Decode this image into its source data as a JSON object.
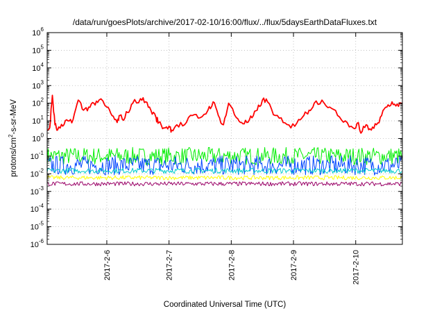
{
  "chart_data": {
    "type": "line",
    "title": "/data/run/goesPlots/archive/2017-02-10/16:00/flux/../flux/5daysEarthDataFluxes.txt",
    "xlabel": "Coordinated Universal Time (UTC)",
    "ylabel": {
      "prefix": "protons/cm",
      "sup": "2",
      "suffix": "-s-sr-MeV"
    },
    "yscale": "log",
    "ylim": [
      1e-06,
      1000000.0
    ],
    "xlim": [
      "2017-02-05T01:00",
      "2017-02-10T18:00"
    ],
    "grid": true,
    "legend": "none",
    "y_ticks": [
      {
        "base": "10",
        "exp": "-6",
        "value": 1e-06
      },
      {
        "base": "10",
        "exp": "-5",
        "value": 1e-05
      },
      {
        "base": "10",
        "exp": "-4",
        "value": 0.0001
      },
      {
        "base": "10",
        "exp": "-3",
        "value": 0.001
      },
      {
        "base": "10",
        "exp": "-2",
        "value": 0.01
      },
      {
        "base": "10",
        "exp": "-1",
        "value": 0.1
      },
      {
        "base": "10",
        "exp": "0",
        "value": 1
      },
      {
        "base": "10",
        "exp": "1",
        "value": 10
      },
      {
        "base": "10",
        "exp": "2",
        "value": 100
      },
      {
        "base": "10",
        "exp": "3",
        "value": 1000
      },
      {
        "base": "10",
        "exp": "4",
        "value": 10000
      },
      {
        "base": "10",
        "exp": "5",
        "value": 100000
      },
      {
        "base": "10",
        "exp": "6",
        "value": 1000000
      }
    ],
    "x_ticks": [
      {
        "label": "2017-2-6",
        "value": "2017-02-06T00:00"
      },
      {
        "label": "2017-2-7",
        "value": "2017-02-07T00:00"
      },
      {
        "label": "2017-2-8",
        "value": "2017-02-08T00:00"
      },
      {
        "label": "2017-2-9",
        "value": "2017-02-09T00:00"
      },
      {
        "label": "2017-2-10",
        "value": "2017-02-10T00:00"
      }
    ],
    "series": [
      {
        "color": "#ff0000",
        "x": [
          "2017-02-05T01:00",
          "2017-02-05T02:00",
          "2017-02-05T03:00",
          "2017-02-05T04:00",
          "2017-02-05T05:00",
          "2017-02-05T07:00",
          "2017-02-05T09:00",
          "2017-02-05T11:00",
          "2017-02-05T13:00",
          "2017-02-05T15:00",
          "2017-02-05T17:00",
          "2017-02-05T19:00",
          "2017-02-05T21:00",
          "2017-02-06T00:00",
          "2017-02-06T02:00",
          "2017-02-06T04:00",
          "2017-02-06T05:00",
          "2017-02-06T06:00",
          "2017-02-06T08:00",
          "2017-02-06T10:00",
          "2017-02-06T13:00",
          "2017-02-06T15:00",
          "2017-02-06T17:00",
          "2017-02-06T19:00",
          "2017-02-06T20:00",
          "2017-02-06T22:00",
          "2017-02-07T00:00",
          "2017-02-07T01:00",
          "2017-02-07T03:00",
          "2017-02-07T06:00",
          "2017-02-07T09:00",
          "2017-02-07T12:00",
          "2017-02-07T15:00",
          "2017-02-07T17:00",
          "2017-02-07T19:00",
          "2017-02-07T21:00",
          "2017-02-07T23:00",
          "2017-02-08T02:00",
          "2017-02-08T04:00",
          "2017-02-08T06:00",
          "2017-02-08T08:00",
          "2017-02-08T10:00",
          "2017-02-08T12:00",
          "2017-02-08T14:00",
          "2017-02-08T17:00",
          "2017-02-08T20:00",
          "2017-02-08T23:00",
          "2017-02-09T02:00",
          "2017-02-09T04:00",
          "2017-02-09T06:00",
          "2017-02-09T08:00",
          "2017-02-09T11:00",
          "2017-02-09T14:00",
          "2017-02-09T17:00",
          "2017-02-09T20:00",
          "2017-02-09T23:00",
          "2017-02-10T01:00",
          "2017-02-10T02:00",
          "2017-02-10T04:00",
          "2017-02-10T06:00",
          "2017-02-10T08:00",
          "2017-02-10T10:00",
          "2017-02-10T12:00",
          "2017-02-10T14:00",
          "2017-02-10T16:00",
          "2017-02-10T18:00"
        ],
        "y": [
          3,
          4,
          280,
          6,
          3,
          5,
          10,
          12,
          150,
          40,
          60,
          100,
          150,
          60,
          20,
          8,
          20,
          12,
          30,
          100,
          180,
          120,
          40,
          15,
          8,
          4,
          5,
          3,
          6,
          6,
          20,
          15,
          40,
          120,
          20,
          6,
          100,
          15,
          8,
          8,
          15,
          40,
          150,
          120,
          20,
          8,
          4,
          12,
          20,
          40,
          100,
          150,
          60,
          20,
          10,
          4,
          8,
          2,
          6,
          3,
          6,
          20,
          60,
          120,
          90,
          100
        ]
      },
      {
        "color": "#00ee00",
        "level": 0.1,
        "noise": 0.5
      },
      {
        "color": "#0044ff",
        "level": 0.03,
        "noise": 0.55
      },
      {
        "color": "#00cccc",
        "level": 0.015,
        "noise": 0.15
      },
      {
        "color": "#ffff00",
        "level": 0.006,
        "noise": 0.12
      },
      {
        "color": "#990066",
        "level": 0.0027,
        "noise": 0.12
      }
    ]
  }
}
